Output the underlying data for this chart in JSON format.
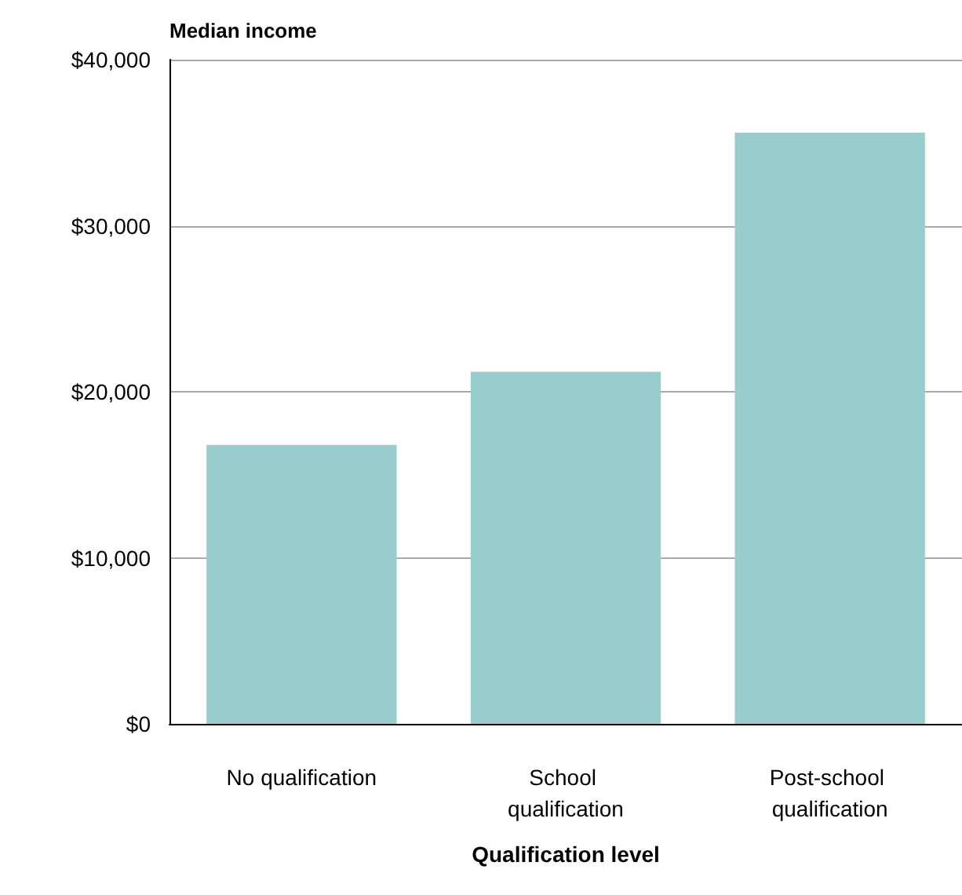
{
  "chart_data": {
    "type": "bar",
    "ylabel": "Median income",
    "xlabel": "Qualification level",
    "categories": [
      "No qualification",
      "School qualification",
      "Post-school qualification"
    ],
    "values": [
      16800,
      21200,
      35600
    ],
    "color": "#99cccc",
    "ylim": [
      0,
      40000
    ],
    "yticks": [
      {
        "value": 0,
        "label": "$0"
      },
      {
        "value": 10000,
        "label": "$10,000"
      },
      {
        "value": 20000,
        "label": "$20,000"
      },
      {
        "value": 30000,
        "label": "$30,000"
      },
      {
        "value": 40000,
        "label": "$40,000"
      }
    ],
    "grid": "y"
  }
}
